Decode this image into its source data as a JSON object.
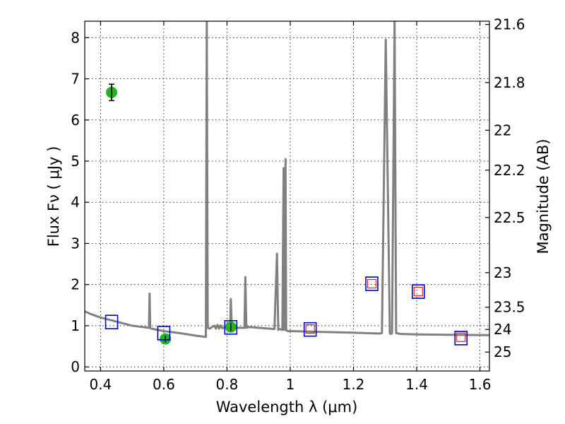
{
  "chart_data": {
    "type": "line",
    "xlabel": "Wavelength  λ (μm)",
    "ylabel": "Flux  Fν  ( μJy )",
    "ylabel_right": "Magnitude (AB)",
    "xlim": [
      0.35,
      1.63
    ],
    "ylim": [
      -0.1,
      8.4
    ],
    "grid": true,
    "x_ticks": [
      {
        "value": 0.4,
        "label": "0.4"
      },
      {
        "value": 0.6,
        "label": "0.6"
      },
      {
        "value": 0.8,
        "label": "0.8"
      },
      {
        "value": 1.0,
        "label": "1"
      },
      {
        "value": 1.2,
        "label": "1.2"
      },
      {
        "value": 1.4,
        "label": "1.4"
      },
      {
        "value": 1.6,
        "label": "1.6"
      }
    ],
    "y_ticks": [
      {
        "value": 0,
        "label": "0"
      },
      {
        "value": 1,
        "label": "1"
      },
      {
        "value": 2,
        "label": "2"
      },
      {
        "value": 3,
        "label": "3"
      },
      {
        "value": 4,
        "label": "4"
      },
      {
        "value": 5,
        "label": "5"
      },
      {
        "value": 6,
        "label": "6"
      },
      {
        "value": 7,
        "label": "7"
      },
      {
        "value": 8,
        "label": "8"
      }
    ],
    "mag_ticks": [
      {
        "flux": 8.32,
        "label": "21.6"
      },
      {
        "flux": 6.91,
        "label": "21.8"
      },
      {
        "flux": 5.75,
        "label": "22"
      },
      {
        "flux": 4.78,
        "label": "22.2"
      },
      {
        "flux": 3.63,
        "label": "22.5"
      },
      {
        "flux": 2.29,
        "label": "23"
      },
      {
        "flux": 1.45,
        "label": "23.5"
      },
      {
        "flux": 0.91,
        "label": "24"
      },
      {
        "flux": 0.36,
        "label": "25"
      }
    ],
    "series": [
      {
        "style": "line",
        "color": "#808080",
        "x": [
          0.35,
          0.37,
          0.4,
          0.45,
          0.5,
          0.553,
          0.555,
          0.557,
          0.56,
          0.6,
          0.65,
          0.7,
          0.733,
          0.736,
          0.739,
          0.745,
          0.76,
          0.765,
          0.77,
          0.775,
          0.78,
          0.785,
          0.8,
          0.81,
          0.812,
          0.815,
          0.83,
          0.855,
          0.858,
          0.861,
          0.87,
          0.9,
          0.95,
          0.958,
          0.962,
          0.966,
          0.975,
          0.979,
          0.981,
          0.983,
          0.985,
          0.987,
          0.989,
          0.993,
          1.0,
          1.1,
          1.2,
          1.28,
          1.29,
          1.302,
          1.315,
          1.318,
          1.322,
          1.33,
          1.335,
          1.35,
          1.352,
          1.4,
          1.5,
          1.63
        ],
        "y": [
          1.35,
          1.28,
          1.2,
          1.1,
          1.0,
          0.95,
          1.78,
          0.95,
          0.93,
          0.87,
          0.82,
          0.76,
          0.73,
          8.4,
          0.95,
          0.93,
          1.0,
          0.93,
          1.02,
          0.93,
          1.01,
          0.94,
          0.97,
          0.96,
          1.65,
          0.96,
          0.95,
          0.95,
          2.18,
          0.95,
          0.97,
          0.95,
          0.92,
          2.75,
          0.9,
          0.92,
          0.9,
          4.83,
          0.9,
          0.9,
          5.05,
          0.9,
          0.88,
          0.87,
          0.87,
          0.85,
          0.83,
          0.81,
          0.82,
          7.95,
          0.82,
          0.8,
          0.82,
          8.4,
          0.82,
          0.8,
          0.8,
          0.79,
          0.78,
          0.77
        ]
      },
      {
        "style": "points",
        "marker": "circle",
        "color": "#22b422",
        "x": [
          0.435,
          0.605,
          0.812
        ],
        "y": [
          6.67,
          0.68,
          0.97
        ],
        "yerr": [
          0.2,
          0.08,
          0.1
        ]
      },
      {
        "style": "points",
        "marker": "open-square",
        "color": "#0000cc",
        "x": [
          0.435,
          0.6,
          0.812,
          1.063,
          1.258,
          1.405,
          1.54
        ],
        "y": [
          1.09,
          0.82,
          0.96,
          0.91,
          2.02,
          1.83,
          0.7
        ]
      },
      {
        "style": "points",
        "marker": "small-open-square",
        "color": "#dd2020",
        "x": [
          1.063,
          1.258,
          1.405,
          1.54
        ],
        "y": [
          0.92,
          2.02,
          1.83,
          0.72
        ]
      }
    ]
  }
}
